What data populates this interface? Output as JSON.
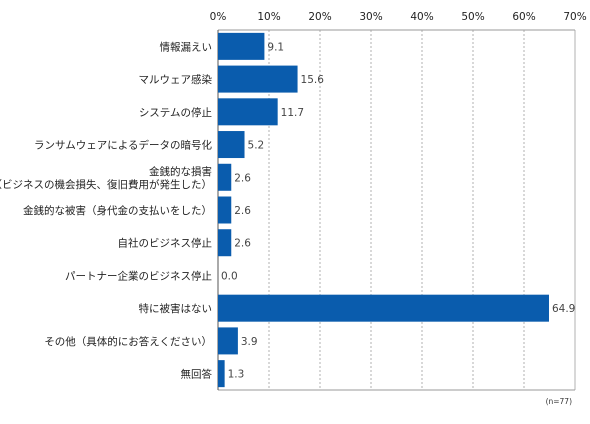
{
  "chart_data": {
    "type": "bar",
    "orientation": "horizontal",
    "categories": [
      [
        "情報漏えい"
      ],
      [
        "マルウェア感染"
      ],
      [
        "システムの停止"
      ],
      [
        "ランサムウェアによるデータの暗号化"
      ],
      [
        "金銭的な損害",
        "（ビジネスの機会損失、復旧費用が発生した）"
      ],
      [
        "金銭的な被害（身代金の支払いをした）"
      ],
      [
        "自社のビジネス停止"
      ],
      [
        "パートナー企業のビジネス停止"
      ],
      [
        "特に被害はない"
      ],
      [
        "その他（具体的にお答えください）"
      ],
      [
        "無回答"
      ]
    ],
    "values": [
      9.1,
      15.6,
      11.7,
      5.2,
      2.6,
      2.6,
      2.6,
      0.0,
      64.9,
      3.9,
      1.3
    ],
    "value_labels": [
      "9.1",
      "15.6",
      "11.7",
      "5.2",
      "2.6",
      "2.6",
      "2.6",
      "0.0",
      "64.9",
      "3.9",
      "1.3"
    ],
    "xlim": [
      0,
      70
    ],
    "x_ticks": [
      "0%",
      "10%",
      "20%",
      "30%",
      "40%",
      "50%",
      "60%",
      "70%"
    ],
    "x_tick_values": [
      0,
      10,
      20,
      30,
      40,
      50,
      60,
      70
    ],
    "note": "(n=77)",
    "bar_color": "#0a5cad",
    "grid": true
  }
}
